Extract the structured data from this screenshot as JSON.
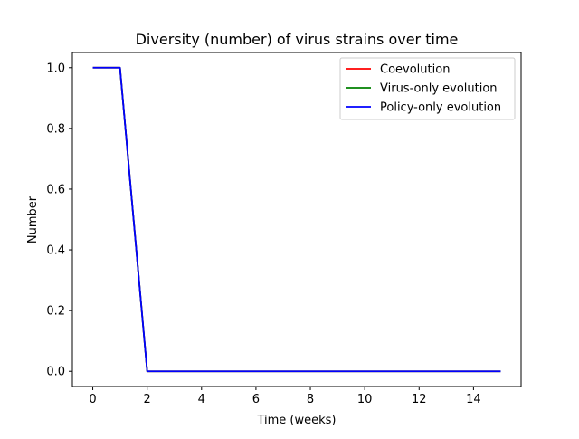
{
  "chart_data": {
    "type": "line",
    "title": "Diversity (number) of virus strains over time",
    "xlabel": "Time (weeks)",
    "ylabel": "Number",
    "xlim": [
      -0.75,
      15.75
    ],
    "ylim": [
      -0.05,
      1.05
    ],
    "xticks": [
      0,
      2,
      4,
      6,
      8,
      10,
      12,
      14
    ],
    "xtick_labels": [
      "0",
      "2",
      "4",
      "6",
      "8",
      "10",
      "12",
      "14"
    ],
    "yticks": [
      0.0,
      0.2,
      0.4,
      0.6,
      0.8,
      1.0
    ],
    "ytick_labels": [
      "0.0",
      "0.2",
      "0.4",
      "0.6",
      "0.8",
      "1.0"
    ],
    "grid": false,
    "legend_position": "upper right",
    "x": [
      0,
      1,
      2,
      3,
      4,
      5,
      6,
      7,
      8,
      9,
      10,
      11,
      12,
      13,
      14,
      15
    ],
    "series": [
      {
        "name": "Coevolution",
        "color": "#ff0000",
        "values": [
          1,
          1,
          0,
          0,
          0,
          0,
          0,
          0,
          0,
          0,
          0,
          0,
          0,
          0,
          0,
          0
        ]
      },
      {
        "name": "Virus-only evolution",
        "color": "#008000",
        "values": [
          1,
          1,
          0,
          0,
          0,
          0,
          0,
          0,
          0,
          0,
          0,
          0,
          0,
          0,
          0,
          0
        ]
      },
      {
        "name": "Policy-only evolution",
        "color": "#0000ff",
        "values": [
          1,
          1,
          0,
          0,
          0,
          0,
          0,
          0,
          0,
          0,
          0,
          0,
          0,
          0,
          0,
          0
        ]
      }
    ]
  }
}
